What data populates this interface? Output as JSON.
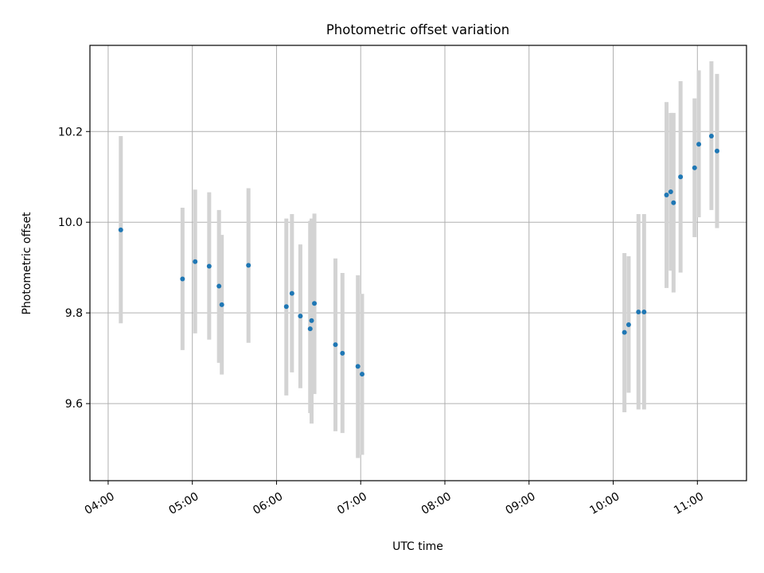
{
  "chart_data": {
    "type": "scatter",
    "title": "Photometric offset variation",
    "xlabel": "UTC time",
    "ylabel": "Photometric offset",
    "xlim": [
      "03:47",
      "11:35"
    ],
    "ylim": [
      9.43,
      10.39
    ],
    "x_ticks": [
      "04:00",
      "05:00",
      "06:00",
      "07:00",
      "08:00",
      "09:00",
      "10:00",
      "11:00"
    ],
    "y_ticks": [
      9.6,
      9.8,
      10.0,
      10.2
    ],
    "grid": true,
    "colors": {
      "point": "#1f77b4",
      "errorbar": "#d3d3d3",
      "grid": "#b0b0b0"
    },
    "points": [
      {
        "t": "04:09",
        "y": 9.983,
        "lo": 9.777,
        "hi": 10.19
      },
      {
        "t": "04:53",
        "y": 9.875,
        "lo": 9.718,
        "hi": 10.032
      },
      {
        "t": "05:02",
        "y": 9.913,
        "lo": 9.755,
        "hi": 10.072
      },
      {
        "t": "05:12",
        "y": 9.903,
        "lo": 9.741,
        "hi": 10.066
      },
      {
        "t": "05:19",
        "y": 9.859,
        "lo": 9.69,
        "hi": 10.027
      },
      {
        "t": "05:21",
        "y": 9.818,
        "lo": 9.664,
        "hi": 9.972
      },
      {
        "t": "05:40",
        "y": 9.905,
        "lo": 9.734,
        "hi": 10.075
      },
      {
        "t": "06:07",
        "y": 9.814,
        "lo": 9.618,
        "hi": 10.008
      },
      {
        "t": "06:11",
        "y": 9.843,
        "lo": 9.669,
        "hi": 10.018
      },
      {
        "t": "06:17",
        "y": 9.793,
        "lo": 9.634,
        "hi": 9.951
      },
      {
        "t": "06:24",
        "y": 9.765,
        "lo": 9.579,
        "hi": 10.003
      },
      {
        "t": "06:25",
        "y": 9.783,
        "lo": 9.556,
        "hi": 10.008
      },
      {
        "t": "06:27",
        "y": 9.821,
        "lo": 9.621,
        "hi": 10.019
      },
      {
        "t": "06:42",
        "y": 9.73,
        "lo": 9.539,
        "hi": 9.92
      },
      {
        "t": "06:47",
        "y": 9.711,
        "lo": 9.535,
        "hi": 9.888
      },
      {
        "t": "06:58",
        "y": 9.682,
        "lo": 9.48,
        "hi": 9.883
      },
      {
        "t": "07:01",
        "y": 9.665,
        "lo": 9.487,
        "hi": 9.842
      },
      {
        "t": "10:08",
        "y": 9.757,
        "lo": 9.581,
        "hi": 9.932
      },
      {
        "t": "10:11",
        "y": 9.774,
        "lo": 9.624,
        "hi": 9.925
      },
      {
        "t": "10:18",
        "y": 9.802,
        "lo": 9.587,
        "hi": 10.018
      },
      {
        "t": "10:22",
        "y": 9.802,
        "lo": 9.587,
        "hi": 10.018
      },
      {
        "t": "10:38",
        "y": 10.06,
        "lo": 9.855,
        "hi": 10.265
      },
      {
        "t": "10:41",
        "y": 10.067,
        "lo": 9.893,
        "hi": 10.241
      },
      {
        "t": "10:43",
        "y": 10.043,
        "lo": 9.845,
        "hi": 10.241
      },
      {
        "t": "10:48",
        "y": 10.1,
        "lo": 9.889,
        "hi": 10.311
      },
      {
        "t": "10:58",
        "y": 10.12,
        "lo": 9.967,
        "hi": 10.273
      },
      {
        "t": "11:01",
        "y": 10.172,
        "lo": 10.011,
        "hi": 10.335
      },
      {
        "t": "11:10",
        "y": 10.19,
        "lo": 10.027,
        "hi": 10.355
      },
      {
        "t": "11:14",
        "y": 10.157,
        "lo": 9.987,
        "hi": 10.327
      }
    ]
  }
}
